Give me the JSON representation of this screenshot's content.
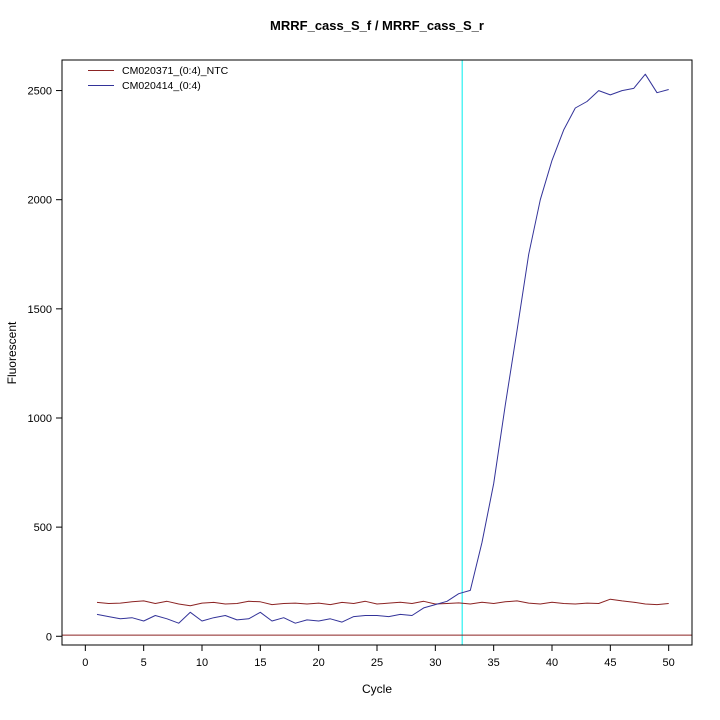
{
  "chart_data": {
    "type": "line",
    "title": "MRRF_cass_S_f / MRRF_cass_S_r",
    "xlabel": "Cycle",
    "ylabel": "Fluorescent",
    "xlim": [
      -2,
      52
    ],
    "ylim": [
      -40,
      2640
    ],
    "x_ticks": [
      0,
      5,
      10,
      15,
      20,
      25,
      30,
      35,
      40,
      45,
      50
    ],
    "y_ticks": [
      0,
      500,
      1000,
      1500,
      2000,
      2500
    ],
    "grid": false,
    "legend_position": "top-left",
    "threshold_line": {
      "x": 32.3,
      "color": "#00eeee"
    },
    "baseline_line": {
      "y": 5,
      "color": "#8b2323"
    },
    "cycles": [
      1,
      2,
      3,
      4,
      5,
      6,
      7,
      8,
      9,
      10,
      11,
      12,
      13,
      14,
      15,
      16,
      17,
      18,
      19,
      20,
      21,
      22,
      23,
      24,
      25,
      26,
      27,
      28,
      29,
      30,
      31,
      32,
      33,
      34,
      35,
      36,
      37,
      38,
      39,
      40,
      41,
      42,
      43,
      44,
      45,
      46,
      47,
      48,
      49,
      50
    ],
    "series": [
      {
        "name": "CM020371_(0:4)_NTC",
        "color": "#8b2323",
        "values": [
          155,
          150,
          152,
          158,
          162,
          150,
          160,
          148,
          140,
          152,
          155,
          148,
          150,
          160,
          158,
          145,
          150,
          152,
          148,
          152,
          145,
          155,
          150,
          160,
          148,
          152,
          156,
          150,
          160,
          148,
          150,
          153,
          148,
          156,
          150,
          158,
          162,
          152,
          148,
          156,
          150,
          148,
          152,
          150,
          170,
          162,
          156,
          148,
          145,
          150
        ]
      },
      {
        "name": "CM020414_(0:4)",
        "color": "#333399",
        "values": [
          100,
          90,
          80,
          85,
          70,
          95,
          80,
          60,
          110,
          70,
          85,
          95,
          75,
          80,
          110,
          70,
          85,
          60,
          75,
          70,
          80,
          65,
          90,
          95,
          95,
          90,
          100,
          95,
          130,
          145,
          160,
          195,
          210,
          430,
          700,
          1060,
          1400,
          1750,
          2000,
          2180,
          2320,
          2420,
          2450,
          2500,
          2480,
          2500,
          2510,
          2575,
          2490,
          2505
        ]
      }
    ]
  }
}
